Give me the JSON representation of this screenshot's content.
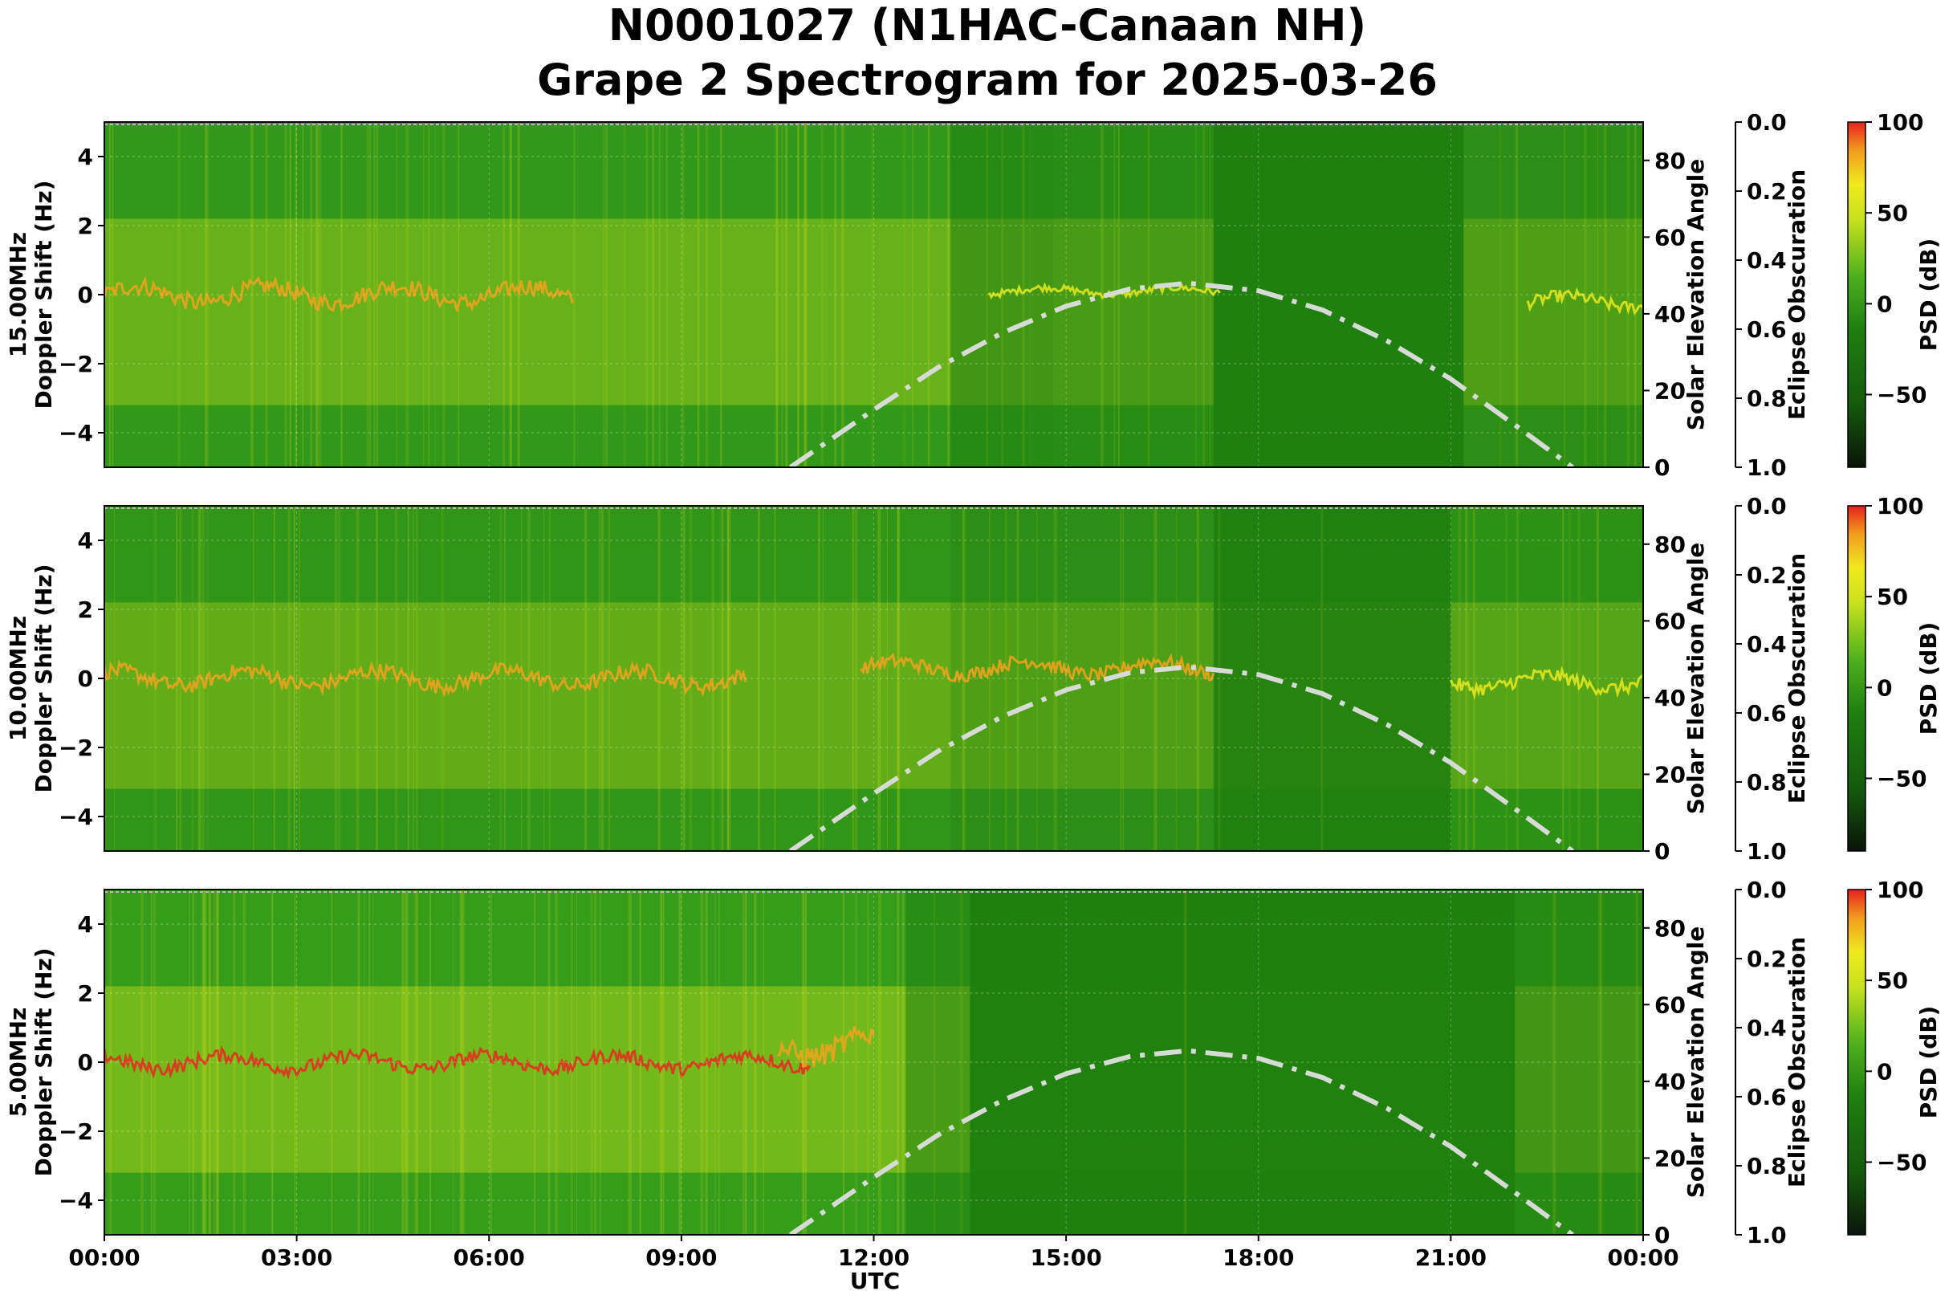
{
  "figure": {
    "title_line1": "N0001027 (N1HAC-Canaan NH)",
    "title_line2": "Grape 2 Spectrogram for 2025-03-26",
    "xlabel": "UTC",
    "x_ticks": [
      "00:00",
      "03:00",
      "06:00",
      "09:00",
      "12:00",
      "15:00",
      "18:00",
      "21:00",
      "00:00"
    ]
  },
  "colors": {
    "background_green": "#1f7f0f",
    "mid_green": "#3da51e",
    "yellow": "#e6ea1e",
    "orange": "#f2a21e",
    "red": "#e8281e",
    "elevation_curve": "#d6dbd6"
  },
  "chart_data": [
    {
      "type": "heatmap",
      "panel_label": "15.00MHz",
      "ylabel": "Doppler Shift (Hz)",
      "ylim": [
        -5,
        5
      ],
      "y_ticks": [
        "4",
        "2",
        "0",
        "−2",
        "−4"
      ],
      "right_ylabel": "Solar Elevation Angle",
      "right_ylim": [
        0,
        90
      ],
      "right_ticks": [
        "80",
        "60",
        "40",
        "20",
        "0"
      ],
      "obscuration_label": "Eclipse Obscuration",
      "obscuration_ticks": [
        "0.0",
        "0.2",
        "0.4",
        "0.6",
        "0.8",
        "1.0"
      ],
      "colorbar_label": "PSD (dB)",
      "colorbar_ticks": [
        "100",
        "50",
        "0",
        "−50"
      ],
      "colorbar_range": [
        -90,
        100
      ],
      "solar_elevation": {
        "x_hours": [
          10.7,
          12,
          13,
          14,
          15,
          16,
          16.9,
          18,
          19,
          20,
          21,
          22,
          22.9
        ],
        "y_deg": [
          0,
          15,
          26,
          35,
          42,
          46.5,
          48,
          46,
          41,
          33,
          23,
          11,
          0
        ]
      }
    },
    {
      "type": "heatmap",
      "panel_label": "10.00MHz",
      "ylabel": "Doppler Shift (Hz)",
      "ylim": [
        -5,
        5
      ],
      "y_ticks": [
        "4",
        "2",
        "0",
        "−2",
        "−4"
      ],
      "right_ylabel": "Solar Elevation Angle",
      "right_ylim": [
        0,
        90
      ],
      "right_ticks": [
        "80",
        "60",
        "40",
        "20",
        "0"
      ],
      "obscuration_label": "Eclipse Obscuration",
      "obscuration_ticks": [
        "0.0",
        "0.2",
        "0.4",
        "0.6",
        "0.8",
        "1.0"
      ],
      "colorbar_label": "PSD (dB)",
      "colorbar_ticks": [
        "100",
        "50",
        "0",
        "−50"
      ],
      "colorbar_range": [
        -90,
        100
      ],
      "solar_elevation": {
        "x_hours": [
          10.7,
          12,
          13,
          14,
          15,
          16,
          16.9,
          18,
          19,
          20,
          21,
          22,
          22.9
        ],
        "y_deg": [
          0,
          15,
          26,
          35,
          42,
          46.5,
          48,
          46,
          41,
          33,
          23,
          11,
          0
        ]
      }
    },
    {
      "type": "heatmap",
      "panel_label": "5.00MHz",
      "ylabel": "Doppler Shift (Hz)",
      "ylim": [
        -5,
        5
      ],
      "y_ticks": [
        "4",
        "2",
        "0",
        "−2",
        "−4"
      ],
      "right_ylabel": "Solar Elevation Angle",
      "right_ylim": [
        0,
        90
      ],
      "right_ticks": [
        "80",
        "60",
        "40",
        "20",
        "0"
      ],
      "obscuration_label": "Eclipse Obscuration",
      "obscuration_ticks": [
        "0.0",
        "0.2",
        "0.4",
        "0.6",
        "0.8",
        "1.0"
      ],
      "colorbar_label": "PSD (dB)",
      "colorbar_ticks": [
        "100",
        "50",
        "0",
        "−50"
      ],
      "colorbar_range": [
        -90,
        100
      ],
      "solar_elevation": {
        "x_hours": [
          10.7,
          12,
          13,
          14,
          15,
          16,
          16.9,
          18,
          19,
          20,
          21,
          22,
          22.9
        ],
        "y_deg": [
          0,
          15,
          26,
          35,
          42,
          46.5,
          48,
          46,
          41,
          33,
          23,
          11,
          0
        ]
      }
    }
  ]
}
